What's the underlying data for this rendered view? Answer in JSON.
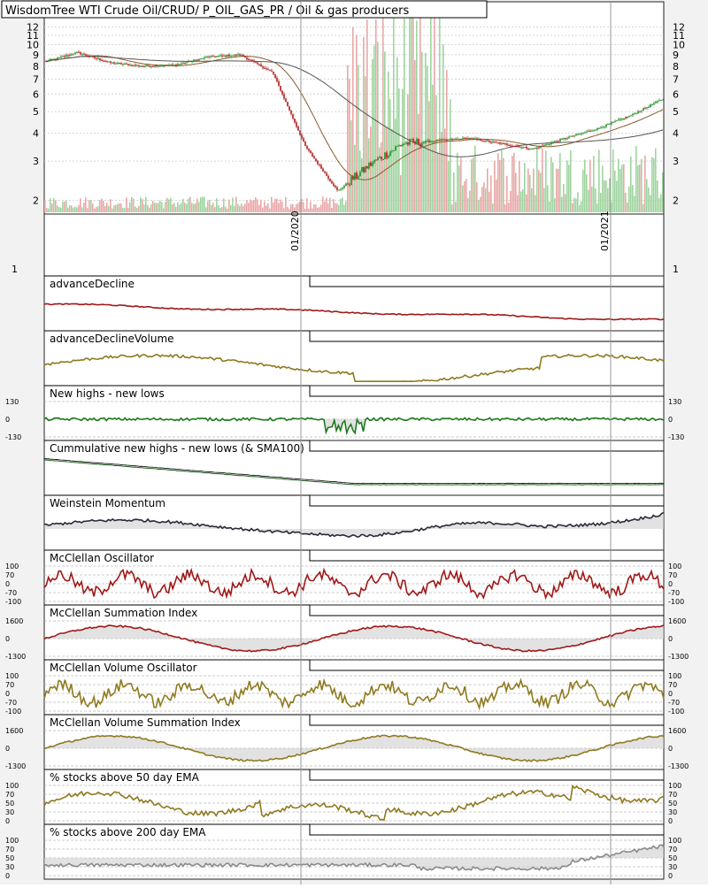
{
  "title": "WisdomTree WTI Crude Oil/CRUD/ P_OIL_GAS_PR / Oil & gas producers",
  "date_labels": [
    "01/2020",
    "01/2021"
  ],
  "price_axis": {
    "ticks": [
      "12",
      "11",
      "10",
      "9",
      "8",
      "7",
      "6",
      "5",
      "4",
      "3",
      "2"
    ],
    "bottom_tick": "1"
  },
  "panels": [
    {
      "key": "ad",
      "label": "advanceDecline",
      "color": "#a01818"
    },
    {
      "key": "adv",
      "label": "advanceDeclineVolume",
      "color": "#8f7a1f"
    },
    {
      "key": "nhnl",
      "label": "New highs - new lows",
      "color": "#1f7a1f",
      "ticks": [
        "130",
        "0",
        "-130"
      ]
    },
    {
      "key": "cum",
      "label": "Cummulative new highs - new lows (& SMA100)",
      "color": "#1f5f1f"
    },
    {
      "key": "wm",
      "label": "Weinstein Momentum",
      "color": "#2a2a3a"
    },
    {
      "key": "mco",
      "label": "McClellan Oscillator",
      "color": "#a01818",
      "ticks": [
        "100",
        "70",
        "0",
        "-70",
        "-100"
      ]
    },
    {
      "key": "msi",
      "label": "McClellan Summation Index",
      "color": "#a01818",
      "ticks": [
        "1600",
        "0",
        "-1300"
      ]
    },
    {
      "key": "mvo",
      "label": "McClellan Volume Oscillator",
      "color": "#8f7a1f",
      "ticks": [
        "100",
        "70",
        "0",
        "-70",
        "-100"
      ]
    },
    {
      "key": "mvsi",
      "label": "McClellan Volume Summation Index",
      "color": "#8f7a1f",
      "ticks": [
        "1600",
        "0",
        "-1300"
      ]
    },
    {
      "key": "p50",
      "label": "% stocks above 50 day EMA",
      "color": "#8f7a1f",
      "ticks": [
        "100",
        "70",
        "50",
        "30",
        "0"
      ]
    },
    {
      "key": "p200",
      "label": "% stocks above 200 day EMA",
      "color": "#8a8a8a",
      "ticks": [
        "100",
        "70",
        "50",
        "30",
        "0"
      ]
    }
  ],
  "colors": {
    "up_candle": "#1f8a1f",
    "down_candle": "#b01818",
    "sma_fast": "#8b5a2b",
    "sma_slow": "#555555",
    "volume_up": "#9fd49f",
    "volume_down": "#e8a8a8",
    "fill": "#cfcfcf"
  },
  "chart_data": {
    "type": "line",
    "title": "WisdomTree WTI Crude Oil/CRUD/ P_OIL_GAS_PR / Oil & gas producers",
    "x": [
      "2019-02",
      "2019-04",
      "2019-06",
      "2019-08",
      "2019-10",
      "2019-12",
      "2020-01",
      "2020-02",
      "2020-03",
      "2020-04",
      "2020-05",
      "2020-06",
      "2020-07",
      "2020-08",
      "2020-09",
      "2020-10",
      "2020-11",
      "2020-12",
      "2021-01",
      "2021-02"
    ],
    "ylim": [
      1.8,
      12.5
    ],
    "yscale": "log",
    "series": [
      {
        "values": [
          8.4,
          9.2,
          8.3,
          8.0,
          8.1,
          8.8,
          9.0,
          7.5,
          3.5,
          2.2,
          2.9,
          3.6,
          3.7,
          3.8,
          3.6,
          3.4,
          3.8,
          4.2,
          4.8,
          5.7
        ]
      }
    ]
  }
}
